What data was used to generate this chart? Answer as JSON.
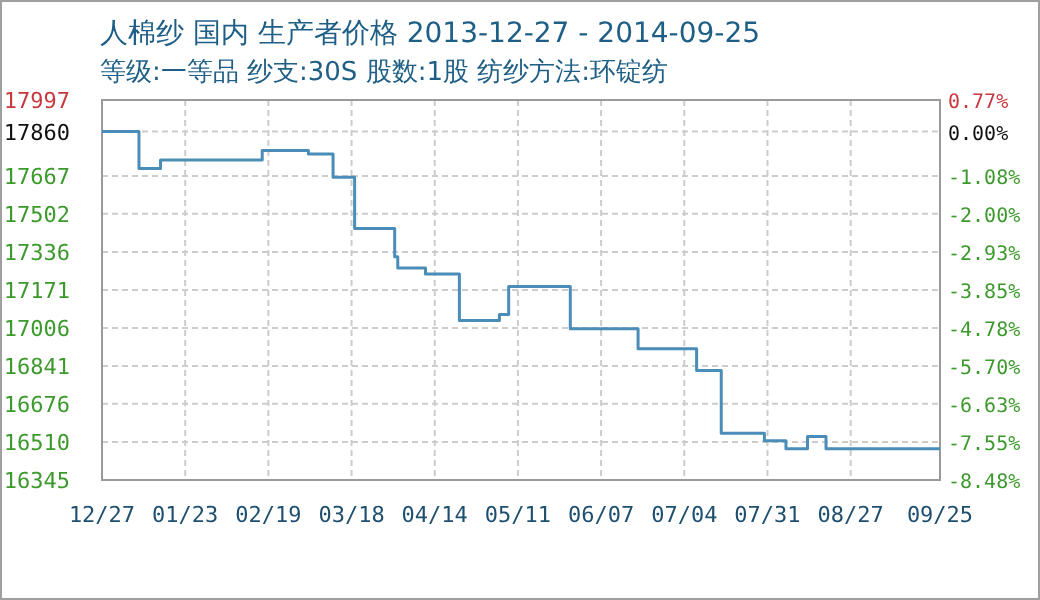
{
  "chart_data": {
    "type": "step",
    "title": "人棉纱 国内 生产者价格 2013-12-27 - 2014-09-25",
    "subtitle": "等级:一等品 纱支:30S 股数:1股 纺纱方法:环锭纺",
    "x": [
      "2013-12-27",
      "2014-01-08",
      "2014-01-15",
      "2014-02-17",
      "2014-03-04",
      "2014-03-12",
      "2014-03-19",
      "2014-04-01",
      "2014-04-02",
      "2014-04-11",
      "2014-04-22",
      "2014-05-05",
      "2014-05-08",
      "2014-05-28",
      "2014-06-19",
      "2014-07-08",
      "2014-07-16",
      "2014-07-30",
      "2014-08-06",
      "2014-08-13",
      "2014-08-19",
      "2014-09-25"
    ],
    "series": [
      {
        "color": "#4a8db8",
        "values": [
          17860,
          17699,
          17736,
          17777,
          17762,
          17661,
          17438,
          17316,
          17267,
          17241,
          17038,
          17064,
          17186,
          17003,
          16916,
          16821,
          16548,
          16516,
          16481,
          16534,
          16481,
          16481
        ]
      }
    ],
    "xlim": [
      "2013-12-27",
      "2014-09-25"
    ],
    "xticks": [
      {
        "value": "2013-12-27",
        "label": "12/27"
      },
      {
        "value": "2014-01-23",
        "label": "01/23"
      },
      {
        "value": "2014-02-19",
        "label": "02/19"
      },
      {
        "value": "2014-03-18",
        "label": "03/18"
      },
      {
        "value": "2014-04-14",
        "label": "04/14"
      },
      {
        "value": "2014-05-11",
        "label": "05/11"
      },
      {
        "value": "2014-06-07",
        "label": "06/07"
      },
      {
        "value": "2014-07-04",
        "label": "07/04"
      },
      {
        "value": "2014-07-31",
        "label": "07/31"
      },
      {
        "value": "2014-08-27",
        "label": "08/27"
      },
      {
        "value": "2014-09-25",
        "label": "09/25"
      }
    ],
    "ylim": [
      16345,
      17997
    ],
    "yticks": [
      17997,
      17860,
      17667,
      17502,
      17336,
      17171,
      17006,
      16841,
      16676,
      16510,
      16345
    ],
    "y2lim": [
      -8.48,
      0.77
    ],
    "y2ticks": [
      {
        "value": 0.77,
        "label": "0.77%"
      },
      {
        "value": 0,
        "label": "0.00%"
      },
      {
        "value": -1.08,
        "label": "-1.08%"
      },
      {
        "value": -2.0,
        "label": "-2.00%"
      },
      {
        "value": -2.93,
        "label": "-2.93%"
      },
      {
        "value": -3.85,
        "label": "-3.85%"
      },
      {
        "value": -4.78,
        "label": "-4.78%"
      },
      {
        "value": -5.7,
        "label": "-5.70%"
      },
      {
        "value": -6.63,
        "label": "-6.63%"
      },
      {
        "value": -7.55,
        "label": "-7.55%"
      },
      {
        "value": -8.48,
        "label": "-8.48%"
      }
    ],
    "grid": true,
    "marker": "none",
    "line_style": "solid"
  }
}
